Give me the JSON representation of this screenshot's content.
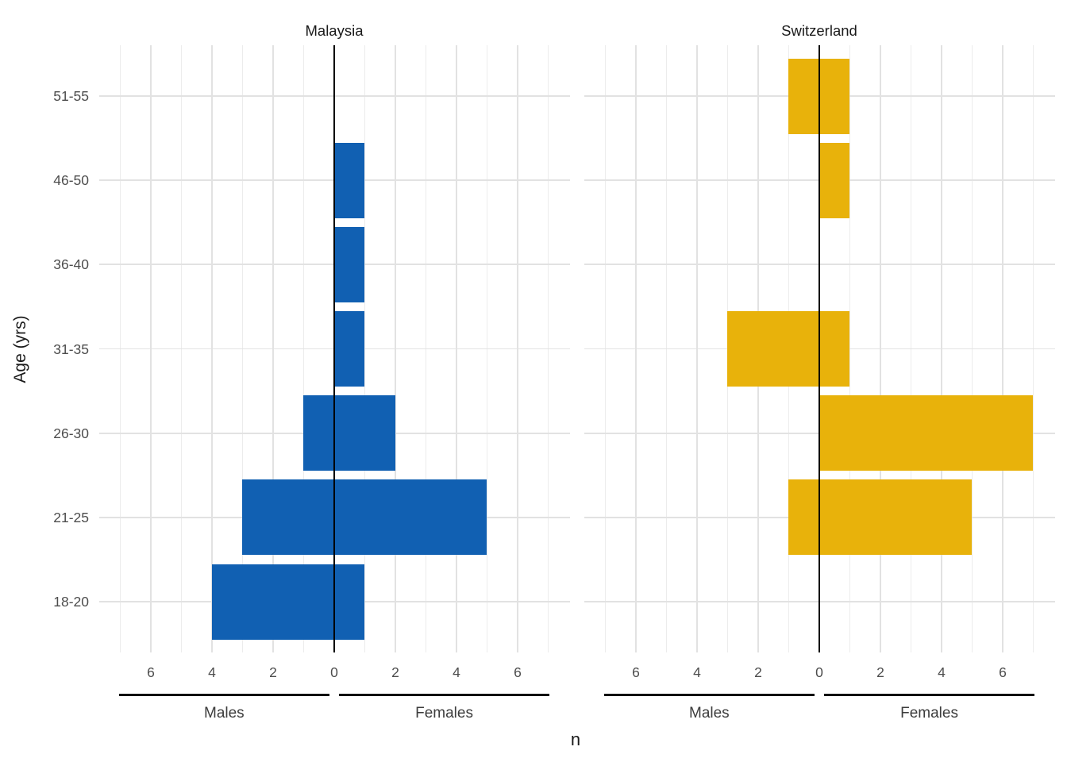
{
  "figure": {
    "background": "#FFFFFF"
  },
  "chart_data": {
    "type": "bar",
    "subtype": "population-pyramid",
    "orientation": "horizontal-diverging",
    "xlabel": "n",
    "ylabel": "Age (yrs)",
    "categories_top_to_bottom": [
      "51-55",
      "46-50",
      "36-40",
      "31-35",
      "26-30",
      "21-25",
      "18-20"
    ],
    "x_tick_values": [
      -6,
      -4,
      -2,
      0,
      2,
      4,
      6
    ],
    "x_tick_labels": [
      "6",
      "4",
      "2",
      "0",
      "2",
      "4",
      "6"
    ],
    "xlim": [
      -7.7,
      7.7
    ],
    "grid": true,
    "side_labels": {
      "left": "Males",
      "right": "Females"
    },
    "facets": [
      {
        "title": "Malaysia",
        "bar_color": "#1160B2",
        "series": [
          {
            "name": "Males",
            "values": [
              0,
              0,
              0,
              0,
              1,
              3,
              4
            ]
          },
          {
            "name": "Females",
            "values": [
              0,
              1,
              1,
              1,
              2,
              5,
              1
            ]
          }
        ]
      },
      {
        "title": "Switzerland",
        "bar_color": "#E8B20B",
        "series": [
          {
            "name": "Males",
            "values": [
              1,
              0,
              0,
              3,
              0,
              1,
              0
            ]
          },
          {
            "name": "Females",
            "values": [
              1,
              1,
              0,
              1,
              7,
              5,
              0
            ]
          }
        ]
      }
    ],
    "colors": {
      "zero_line": "#000000",
      "grid_major": "#E2E2E2",
      "grid_minor": "#ECECEC",
      "tick_label": "#4D4D4D",
      "side_label": "#3D3D3D",
      "side_line": "#111111",
      "facet_title": "#1A1A1A",
      "axis_title": "#1A1A1A"
    }
  }
}
